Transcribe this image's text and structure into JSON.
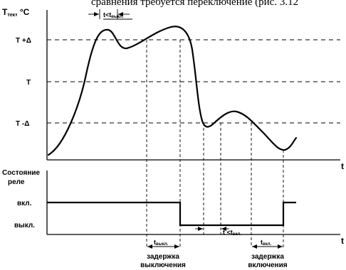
{
  "header_clip_text": "сравнения требуется переключение (рис. 3.12",
  "top_chart": {
    "y_axis_label": "Т",
    "y_axis_label_sub": "тек",
    "y_axis_label_unit": ", °С",
    "x_axis_label": "t",
    "levels": [
      "Т +Δ",
      "Т",
      "Т -Δ"
    ],
    "annotation_top": "t<t",
    "annotation_top_sub": "выкл.",
    "annotation_mid": "t <t",
    "annotation_mid_sub": "вкл."
  },
  "bottom_chart": {
    "y_axis_label_line1": "Состояние",
    "y_axis_label_line2": "реле",
    "x_axis_label": "t",
    "states": [
      "вкл.",
      "выкл."
    ],
    "t_off_label": "t",
    "t_off_label_sub": "выкл.",
    "t_on_label": "t",
    "t_on_label_sub": "вкл.",
    "delay_off_line1": "задержка",
    "delay_off_line2": "выключения",
    "delay_on_line1": "задержка",
    "delay_on_line2": "включения"
  }
}
